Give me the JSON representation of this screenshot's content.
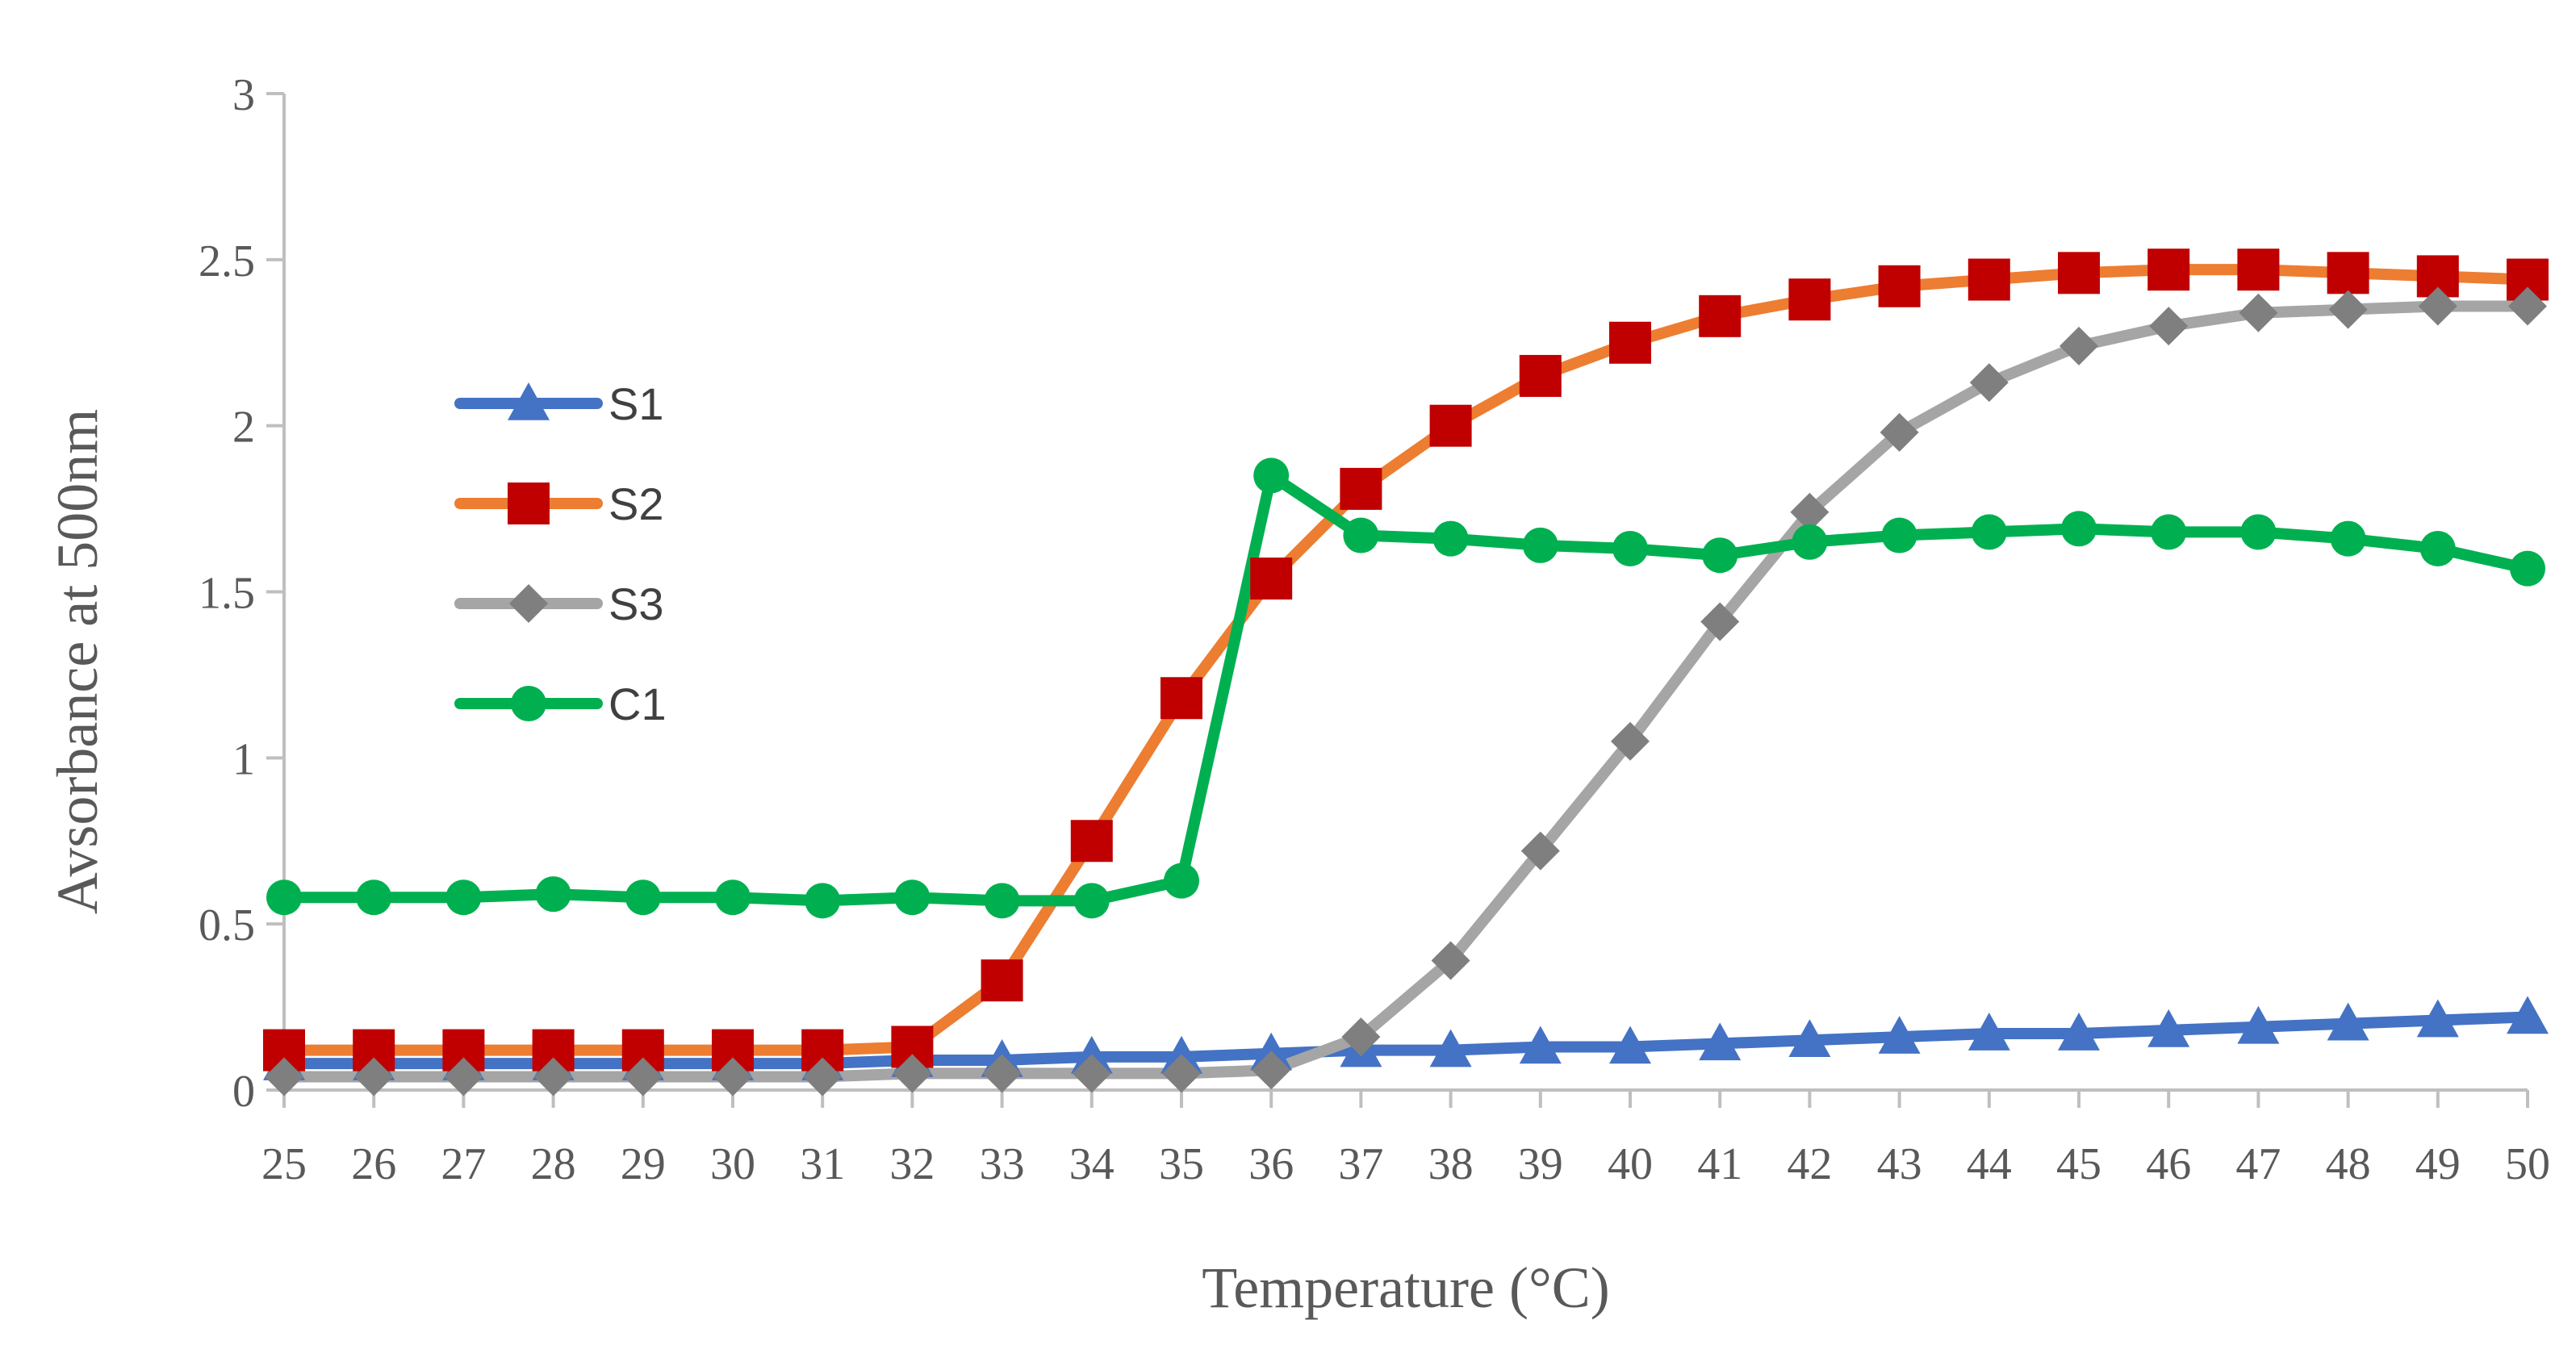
{
  "chart_data": {
    "type": "line",
    "xlabel": "Temperature (°C)",
    "ylabel": "Avsorbance at 500nm",
    "x": [
      25,
      26,
      27,
      28,
      29,
      30,
      31,
      32,
      33,
      34,
      35,
      36,
      37,
      38,
      39,
      40,
      41,
      42,
      43,
      44,
      45,
      46,
      47,
      48,
      49,
      50
    ],
    "xlim": [
      25,
      50
    ],
    "ylim": [
      0,
      3
    ],
    "y_ticks": [
      "0",
      "0.5",
      "1",
      "1.5",
      "2",
      "2.5",
      "3"
    ],
    "x_ticks": [
      "25",
      "26",
      "27",
      "28",
      "29",
      "30",
      "31",
      "32",
      "33",
      "34",
      "35",
      "36",
      "37",
      "38",
      "39",
      "40",
      "41",
      "42",
      "43",
      "44",
      "45",
      "46",
      "47",
      "48",
      "49",
      "50"
    ],
    "grid": false,
    "legend_position": "left",
    "series": [
      {
        "name": "S1",
        "color": "#4472C4",
        "marker": "triangle",
        "values": [
          0.08,
          0.08,
          0.08,
          0.08,
          0.08,
          0.08,
          0.08,
          0.09,
          0.09,
          0.1,
          0.1,
          0.11,
          0.12,
          0.12,
          0.13,
          0.13,
          0.14,
          0.15,
          0.16,
          0.17,
          0.17,
          0.18,
          0.19,
          0.2,
          0.21,
          0.22
        ]
      },
      {
        "name": "S2",
        "color": "#ED7D31",
        "marker_color": "#C00000",
        "marker": "square",
        "values": [
          0.12,
          0.12,
          0.12,
          0.12,
          0.12,
          0.12,
          0.12,
          0.13,
          0.33,
          0.75,
          1.18,
          1.54,
          1.81,
          2.0,
          2.15,
          2.25,
          2.33,
          2.38,
          2.42,
          2.44,
          2.46,
          2.47,
          2.47,
          2.46,
          2.45,
          2.44
        ]
      },
      {
        "name": "S3",
        "color": "#A5A5A5",
        "marker_color": "#7F7F7F",
        "marker": "diamond",
        "values": [
          0.04,
          0.04,
          0.04,
          0.04,
          0.04,
          0.04,
          0.04,
          0.05,
          0.05,
          0.05,
          0.05,
          0.06,
          0.16,
          0.39,
          0.72,
          1.05,
          1.41,
          1.74,
          1.98,
          2.13,
          2.24,
          2.3,
          2.34,
          2.35,
          2.36,
          2.36
        ]
      },
      {
        "name": "C1",
        "color": "#00B050",
        "marker": "circle",
        "values": [
          0.58,
          0.58,
          0.58,
          0.59,
          0.58,
          0.58,
          0.57,
          0.58,
          0.57,
          0.57,
          0.63,
          1.85,
          1.67,
          1.66,
          1.64,
          1.63,
          1.61,
          1.65,
          1.67,
          1.68,
          1.69,
          1.68,
          1.68,
          1.66,
          1.63,
          1.57
        ]
      }
    ]
  }
}
